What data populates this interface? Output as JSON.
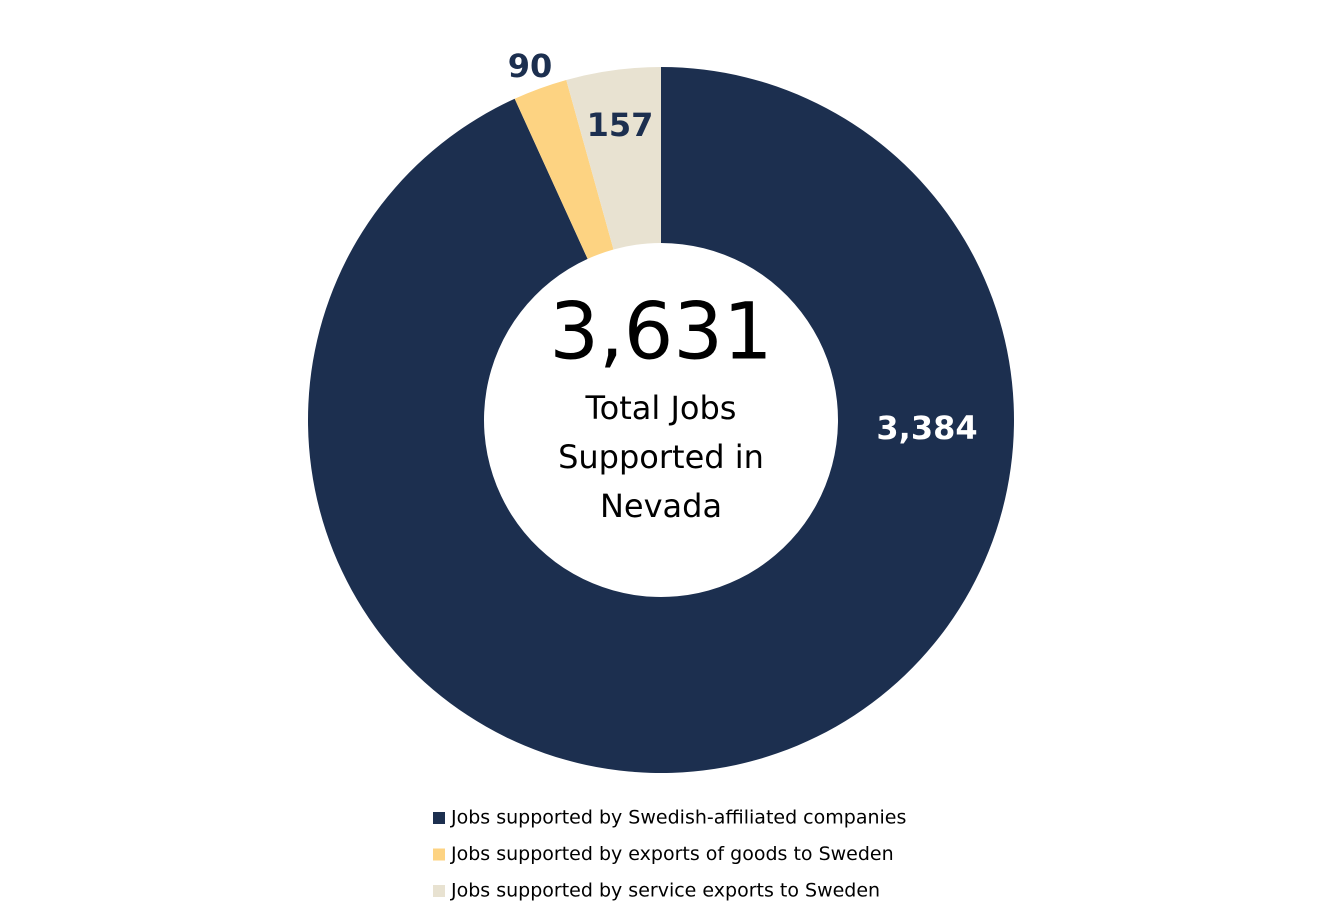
{
  "chart_data": {
    "type": "donut",
    "categories": [
      "Jobs supported by Swedish-affiliated companies",
      "Jobs supported by exports of goods to Sweden",
      "Jobs supported by service exports to Sweden"
    ],
    "values": [
      3384,
      90,
      157
    ],
    "value_labels": [
      "3,384",
      "90",
      "157"
    ],
    "colors": [
      "#1c2f4f",
      "#fdd382",
      "#e8e2d1"
    ],
    "total": {
      "value": 3631,
      "label": "3,631"
    },
    "center_text": [
      "Total Jobs",
      "Supported in",
      "Nevada"
    ]
  }
}
